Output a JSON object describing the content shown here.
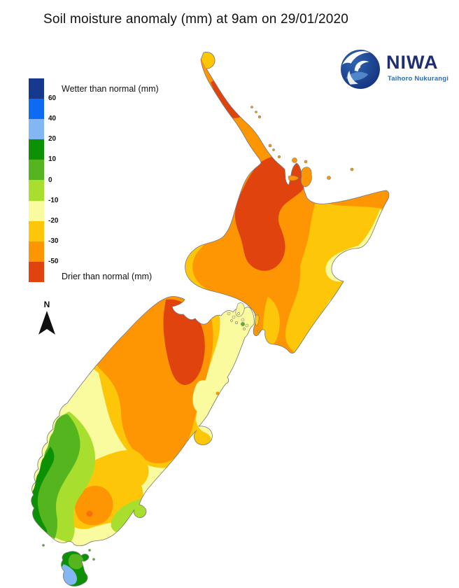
{
  "title": "Soil moisture anomaly (mm) at 9am on 29/01/2020",
  "logo": {
    "brand": "NIWA",
    "subtitle": "Taihoro Nukurangi"
  },
  "legend": {
    "wetter_label": "Wetter than normal (mm)",
    "drier_label": "Drier than normal (mm)",
    "ticks": [
      "60",
      "40",
      "20",
      "10",
      "0",
      "-10",
      "-20",
      "-30",
      "-50"
    ],
    "colors": [
      "#16398f",
      "#0b6bf3",
      "#83b7f3",
      "#0c9104",
      "#54b51f",
      "#a8df2f",
      "#fafa9e",
      "#fdc608",
      "#fe9502",
      "#e1430e"
    ]
  },
  "compass": {
    "label": "N"
  },
  "map": {
    "region": "New Zealand",
    "islands": [
      "North Island",
      "South Island",
      "Stewart Island"
    ],
    "palette": {
      "navy": "#16398f",
      "blue": "#0b6bf3",
      "lightblue": "#83b7f3",
      "darkgreen": "#0c9104",
      "green": "#54b51f",
      "lightgreen": "#a8df2f",
      "paleyellow": "#fafa9e",
      "gold": "#fdc608",
      "orange": "#fe9502",
      "red": "#e1430e",
      "deepspot": "#f4720b",
      "coastline": "#777777"
    },
    "notes": {
      "driest_shading": "Red (below -50 mm) over Northland, Auckland-Waikato-central North Island and Nelson/Buller",
      "wettest_shading": "Blue/green (0 to +40 mm) along Fiordland coast and Stewart Island"
    }
  }
}
